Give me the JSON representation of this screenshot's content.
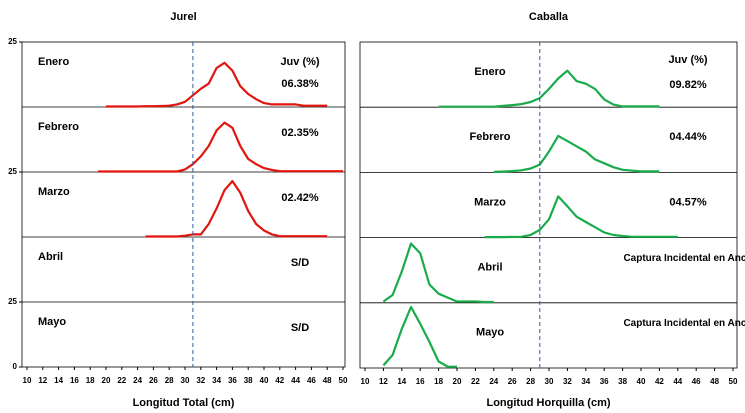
{
  "chart_data": [
    {
      "type": "line",
      "title": "Jurel",
      "x_label": "Longitud Total (cm)",
      "color": "#e3150f",
      "ref_line": 31,
      "xlim": [
        10,
        50
      ],
      "xticks": [
        10,
        12,
        14,
        16,
        18,
        20,
        22,
        24,
        26,
        28,
        30,
        32,
        34,
        36,
        38,
        40,
        42,
        44,
        46,
        48,
        50
      ],
      "ylim": [
        0,
        1.25
      ],
      "panel_ylim": [
        0,
        0.25
      ],
      "yticks": [
        {
          "value": 1.25,
          "label": "25"
        },
        {
          "value": 0.75,
          "label": "25"
        },
        {
          "value": 0.25,
          "label": "25"
        },
        0
      ],
      "panels": [
        {
          "name": "Enero",
          "juv_header": "Juv (%)",
          "juv": "06.38%",
          "x": [
            20,
            21,
            22,
            23,
            24,
            25,
            26,
            27,
            28,
            29,
            30,
            31,
            32,
            33,
            34,
            35,
            36,
            37,
            38,
            39,
            40,
            41,
            42,
            43,
            44,
            45,
            46,
            47,
            48
          ],
          "values": [
            0.002,
            0.002,
            0.002,
            0.002,
            0.002,
            0.003,
            0.003,
            0.004,
            0.005,
            0.01,
            0.02,
            0.045,
            0.07,
            0.09,
            0.15,
            0.17,
            0.14,
            0.08,
            0.05,
            0.03,
            0.015,
            0.01,
            0.01,
            0.01,
            0.01,
            0.005,
            0.005,
            0.005,
            0.005
          ]
        },
        {
          "name": "Febrero",
          "juv": "02.35%",
          "x": [
            19,
            21,
            23,
            25,
            27,
            29,
            30,
            31,
            32,
            33,
            34,
            35,
            36,
            37,
            38,
            39,
            40,
            41,
            42,
            44,
            46,
            48,
            50
          ],
          "values": [
            0.002,
            0.002,
            0.002,
            0.002,
            0.002,
            0.002,
            0.01,
            0.03,
            0.06,
            0.1,
            0.16,
            0.19,
            0.17,
            0.1,
            0.05,
            0.03,
            0.015,
            0.008,
            0.003,
            0.003,
            0.003,
            0.003,
            0.003
          ]
        },
        {
          "name": "Marzo",
          "juv": "02.42%",
          "x": [
            25,
            27,
            29,
            30,
            31,
            32,
            33,
            34,
            35,
            36,
            37,
            38,
            39,
            40,
            41,
            42,
            44,
            46,
            48
          ],
          "values": [
            0.002,
            0.002,
            0.002,
            0.005,
            0.01,
            0.01,
            0.05,
            0.11,
            0.18,
            0.215,
            0.17,
            0.1,
            0.05,
            0.025,
            0.01,
            0.003,
            0.003,
            0.003,
            0.003
          ]
        },
        {
          "name": "Abril",
          "juv": "S/D"
        },
        {
          "name": "Mayo",
          "juv": "S/D"
        }
      ]
    },
    {
      "type": "line",
      "title": "Caballa",
      "x_label": "Longitud Horquilla (cm)",
      "color": "#1aab4b",
      "ref_line": 29,
      "xlim": [
        10,
        50
      ],
      "xticks": [
        10,
        12,
        14,
        16,
        18,
        20,
        22,
        24,
        26,
        28,
        30,
        32,
        34,
        36,
        38,
        40,
        42,
        44,
        46,
        48,
        50
      ],
      "ylim": [
        0,
        1.25
      ],
      "panel_ylim": [
        0,
        0.25
      ],
      "panels": [
        {
          "name": "Enero",
          "juv_header": "Juv (%)",
          "juv": "09.82%",
          "x": [
            18,
            20,
            22,
            24,
            25,
            26,
            27,
            28,
            29,
            30,
            31,
            32,
            33,
            34,
            35,
            36,
            37,
            38,
            40,
            42
          ],
          "values": [
            0.002,
            0.002,
            0.002,
            0.002,
            0.005,
            0.008,
            0.012,
            0.02,
            0.035,
            0.07,
            0.11,
            0.14,
            0.1,
            0.09,
            0.07,
            0.03,
            0.01,
            0.003,
            0.003,
            0.003
          ]
        },
        {
          "name": "Febrero",
          "juv": "04.44%",
          "x": [
            24,
            25,
            26,
            27,
            28,
            29,
            30,
            31,
            32,
            33,
            34,
            35,
            36,
            37,
            38,
            40,
            42
          ],
          "values": [
            0.002,
            0.003,
            0.005,
            0.008,
            0.015,
            0.03,
            0.08,
            0.14,
            0.12,
            0.1,
            0.08,
            0.05,
            0.035,
            0.02,
            0.01,
            0.004,
            0.004
          ]
        },
        {
          "name": "Marzo",
          "juv": "04.57%",
          "x": [
            23,
            25,
            27,
            28,
            29,
            30,
            31,
            32,
            33,
            34,
            35,
            36,
            37,
            38,
            39,
            42,
            44
          ],
          "values": [
            0.002,
            0.002,
            0.003,
            0.01,
            0.03,
            0.07,
            0.158,
            0.12,
            0.08,
            0.06,
            0.04,
            0.02,
            0.01,
            0.006,
            0.003,
            0.003,
            0.003
          ]
        },
        {
          "name": "Abril",
          "juv": "Captura Incidental en Anch",
          "x": [
            12,
            13,
            14,
            15,
            16,
            17,
            18,
            19,
            20,
            21,
            22,
            23,
            24
          ],
          "values": [
            0.005,
            0.03,
            0.12,
            0.227,
            0.19,
            0.07,
            0.035,
            0.02,
            0.005,
            0.005,
            0.005,
            0.003,
            0.003
          ]
        },
        {
          "name": "Mayo",
          "juv": "Captura Incidental en Anch",
          "x": [
            12,
            13,
            14,
            15,
            16,
            17,
            18,
            19,
            20
          ],
          "values": [
            0.01,
            0.05,
            0.15,
            0.234,
            0.17,
            0.1,
            0.025,
            0.005,
            0.005
          ]
        }
      ]
    }
  ]
}
